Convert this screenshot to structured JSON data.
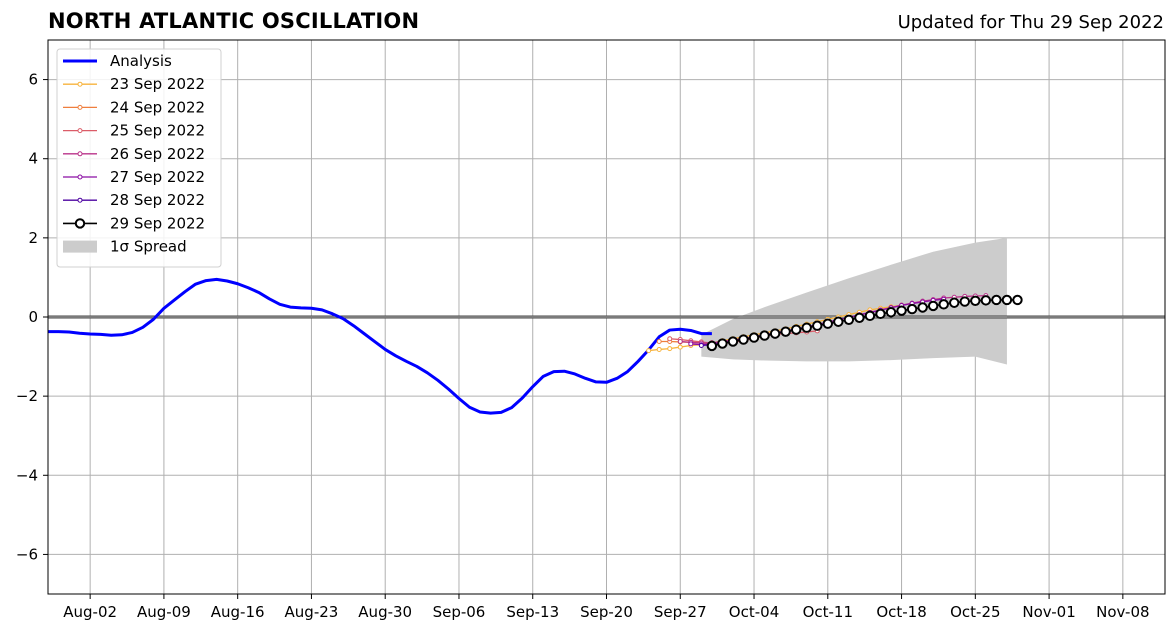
{
  "header": {
    "title": "NORTH ATLANTIC OSCILLATION",
    "subtitle": "Updated for Thu 29 Sep 2022"
  },
  "chart_data": {
    "type": "line",
    "title": "NORTH ATLANTIC OSCILLATION",
    "xlabel": "",
    "ylabel": "",
    "xlim": [
      "2022-07-29",
      "2022-11-12"
    ],
    "ylim": [
      -7,
      7
    ],
    "grid": true,
    "legend_position": "top-left",
    "x_ticks": [
      "2022-08-02",
      "2022-08-09",
      "2022-08-16",
      "2022-08-23",
      "2022-08-30",
      "2022-09-06",
      "2022-09-13",
      "2022-09-20",
      "2022-09-27",
      "2022-10-04",
      "2022-10-11",
      "2022-10-18",
      "2022-10-25",
      "2022-11-01",
      "2022-11-08"
    ],
    "x_tick_labels": [
      "Aug-02",
      "Aug-09",
      "Aug-16",
      "Aug-23",
      "Aug-30",
      "Sep-06",
      "Sep-13",
      "Sep-20",
      "Sep-27",
      "Oct-04",
      "Oct-11",
      "Oct-18",
      "Oct-25",
      "Nov-01",
      "Nov-08"
    ],
    "y_ticks": [
      -6,
      -4,
      -2,
      0,
      2,
      4,
      6
    ],
    "y_tick_labels": [
      "−6",
      "−4",
      "−2",
      "0",
      "2",
      "4",
      "6"
    ],
    "analysis": {
      "name": "Analysis",
      "color": "#0000ff",
      "start_date": "2022-07-29",
      "values": [
        -0.37,
        -0.37,
        -0.38,
        -0.41,
        -0.43,
        -0.44,
        -0.46,
        -0.45,
        -0.39,
        -0.26,
        -0.06,
        0.22,
        0.43,
        0.64,
        0.83,
        0.92,
        0.95,
        0.91,
        0.84,
        0.74,
        0.62,
        0.46,
        0.32,
        0.25,
        0.23,
        0.22,
        0.18,
        0.08,
        -0.04,
        -0.22,
        -0.42,
        -0.62,
        -0.82,
        -0.98,
        -1.12,
        -1.25,
        -1.41,
        -1.6,
        -1.82,
        -2.06,
        -2.28,
        -2.4,
        -2.43,
        -2.41,
        -2.29,
        -2.05,
        -1.76,
        -1.5,
        -1.38,
        -1.37,
        -1.44,
        -1.55,
        -1.64,
        -1.65,
        -1.55,
        -1.38,
        -1.12,
        -0.83,
        -0.5,
        -0.33,
        -0.31,
        -0.34,
        -0.42,
        -0.42
      ]
    },
    "spread": {
      "name": "1σ Spread",
      "color": "#cccccc",
      "dates": [
        "2022-09-29",
        "2022-10-02",
        "2022-10-05",
        "2022-10-09",
        "2022-10-13",
        "2022-10-17",
        "2022-10-21",
        "2022-10-25",
        "2022-10-28"
      ],
      "upper": [
        -0.45,
        -0.05,
        0.25,
        0.62,
        0.98,
        1.32,
        1.65,
        1.88,
        2.0
      ],
      "lower": [
        -1.0,
        -1.07,
        -1.1,
        -1.12,
        -1.12,
        -1.09,
        -1.04,
        -1.0,
        -1.2
      ]
    },
    "forecasts": [
      {
        "name": "23 Sep 2022",
        "color": "#f7b33c",
        "start_date": "2022-09-24",
        "values": [
          -0.85,
          -0.82,
          -0.8,
          -0.76,
          -0.72,
          -0.7,
          -0.66,
          -0.6,
          -0.55,
          -0.5,
          -0.45,
          -0.4,
          -0.35,
          -0.3,
          -0.24,
          -0.18,
          -0.12,
          -0.06,
          0.0,
          0.06,
          0.12,
          0.18,
          0.22,
          0.26,
          0.3,
          0.34
        ]
      },
      {
        "name": "24 Sep 2022",
        "color": "#ef7f3e",
        "start_date": "2022-09-25",
        "values": [
          -0.62,
          -0.62,
          -0.63,
          -0.64,
          -0.65,
          -0.65,
          -0.63,
          -0.6,
          -0.56,
          -0.5
        ]
      },
      {
        "name": "25 Sep 2022",
        "color": "#db5c68",
        "start_date": "2022-09-26",
        "values": [
          -0.55,
          -0.57,
          -0.6,
          -0.63,
          -0.66,
          -0.66,
          -0.64,
          -0.6,
          -0.54,
          -0.48,
          -0.44,
          -0.42,
          -0.4,
          -0.38,
          -0.35
        ]
      },
      {
        "name": "26 Sep 2022",
        "color": "#b93289",
        "start_date": "2022-09-27",
        "values": [
          -0.62,
          -0.64,
          -0.66,
          -0.65,
          -0.62,
          -0.58,
          -0.54,
          -0.5,
          -0.46,
          -0.42,
          -0.38,
          -0.33,
          -0.28,
          -0.22,
          -0.15,
          -0.08,
          -0.01,
          0.06,
          0.12,
          0.18,
          0.24,
          0.3,
          0.35,
          0.4,
          0.44,
          0.48,
          0.5,
          0.52,
          0.53,
          0.54
        ]
      },
      {
        "name": "27 Sep 2022",
        "color": "#8a0da3",
        "start_date": "2022-09-28",
        "values": [
          -0.68,
          -0.7,
          -0.68,
          -0.64,
          -0.6,
          -0.55,
          -0.5,
          -0.45,
          -0.4,
          -0.35,
          -0.3,
          -0.25,
          -0.19,
          -0.13,
          -0.07,
          -0.01,
          0.05,
          0.11,
          0.17,
          0.23,
          0.29,
          0.34,
          0.38,
          0.42,
          0.45
        ]
      },
      {
        "name": "28 Sep 2022",
        "color": "#4c02a1",
        "start_date": "2022-09-29",
        "values": [
          -0.72,
          -0.7,
          -0.66,
          -0.62,
          -0.57,
          -0.52,
          -0.47,
          -0.42,
          -0.37
        ]
      },
      {
        "name": "29 Sep 2022",
        "color": "#000000",
        "start_date": "2022-09-30",
        "values": [
          -0.73,
          -0.67,
          -0.62,
          -0.57,
          -0.52,
          -0.47,
          -0.42,
          -0.37,
          -0.32,
          -0.27,
          -0.22,
          -0.17,
          -0.12,
          -0.07,
          -0.02,
          0.03,
          0.08,
          0.12,
          0.16,
          0.2,
          0.24,
          0.28,
          0.32,
          0.36,
          0.39,
          0.41,
          0.42,
          0.43,
          0.43,
          0.43
        ]
      }
    ]
  }
}
